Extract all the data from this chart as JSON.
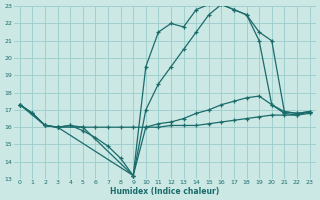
{
  "xlabel": "Humidex (Indice chaleur)",
  "bg_color": "#cce8e4",
  "grid_color": "#99cccc",
  "line_color": "#1a6b6b",
  "xlim": [
    -0.5,
    23.5
  ],
  "ylim": [
    13,
    23
  ],
  "xticks": [
    0,
    1,
    2,
    3,
    4,
    5,
    6,
    7,
    8,
    9,
    10,
    11,
    12,
    13,
    14,
    15,
    16,
    17,
    18,
    19,
    20,
    21,
    22,
    23
  ],
  "yticks": [
    13,
    14,
    15,
    16,
    17,
    18,
    19,
    20,
    21,
    22,
    23
  ],
  "line1_x": [
    0,
    1,
    2,
    3,
    4,
    5,
    6,
    7,
    8,
    9,
    10,
    11,
    12,
    13,
    14,
    15,
    16,
    17,
    18,
    19,
    20,
    21,
    22,
    23
  ],
  "line1_y": [
    17.3,
    16.8,
    16.1,
    16.0,
    16.1,
    16.0,
    16.0,
    16.0,
    16.0,
    16.0,
    16.0,
    16.0,
    16.1,
    16.1,
    16.1,
    16.2,
    16.3,
    16.4,
    16.5,
    16.6,
    16.7,
    16.7,
    16.7,
    16.8
  ],
  "line2_x": [
    0,
    1,
    2,
    3,
    4,
    5,
    6,
    7,
    8,
    9,
    10,
    11,
    12,
    13,
    14,
    15,
    16,
    17,
    18,
    19,
    20,
    21,
    22,
    23
  ],
  "line2_y": [
    17.3,
    16.8,
    16.1,
    16.0,
    16.1,
    15.8,
    15.4,
    14.9,
    14.2,
    13.2,
    16.0,
    16.2,
    16.3,
    16.5,
    16.8,
    17.0,
    17.3,
    17.5,
    17.7,
    17.8,
    17.3,
    16.8,
    16.7,
    16.9
  ],
  "line3_x": [
    0,
    1,
    2,
    3,
    5,
    9,
    10,
    11,
    12,
    13,
    14,
    15,
    16,
    17,
    18,
    19,
    20,
    21,
    22,
    23
  ],
  "line3_y": [
    17.3,
    16.8,
    16.1,
    16.0,
    16.0,
    13.2,
    19.5,
    21.5,
    22.0,
    21.8,
    22.8,
    23.1,
    23.1,
    22.8,
    22.5,
    21.0,
    17.3,
    16.9,
    16.8,
    16.9
  ],
  "line4_x": [
    0,
    2,
    3,
    9,
    10,
    11,
    12,
    13,
    14,
    15,
    16,
    17,
    18,
    19,
    20,
    21,
    22,
    23
  ],
  "line4_y": [
    17.3,
    16.1,
    16.0,
    13.2,
    17.0,
    18.5,
    19.5,
    20.5,
    21.5,
    22.5,
    23.1,
    22.8,
    22.5,
    21.5,
    21.0,
    16.9,
    16.8,
    16.9
  ]
}
